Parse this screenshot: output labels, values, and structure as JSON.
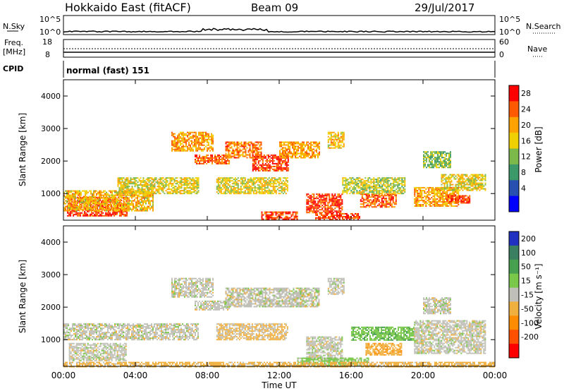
{
  "header": {
    "station": "Hokkaido East (fitACF)",
    "beam": "Beam 09",
    "date": "29/Jul/2017"
  },
  "strips": {
    "nsky": {
      "label": "N.Sky",
      "ticks": [
        "10^5",
        "10^0"
      ],
      "right_ticks": [
        "10^5",
        "10^0"
      ],
      "right_label": "N.Search"
    },
    "freq": {
      "label_top": "Freq.",
      "label_bottom": "[MHz]",
      "ticks": [
        "18",
        "8"
      ],
      "right_ticks": [
        "60",
        "0"
      ],
      "right_label": "Nave"
    },
    "cpid": {
      "label": "CPID",
      "text": "normal (fast) 151"
    }
  },
  "chart_data": [
    {
      "type": "heatmap",
      "name_hint": "power",
      "ylabel": "Slant Range [km]",
      "y_ticks": [
        "4000",
        "3000",
        "2000",
        "1000"
      ],
      "y_values": [
        4000,
        3000,
        2000,
        1000
      ],
      "ylim": [
        180,
        4500
      ],
      "xlim": [
        0,
        24
      ],
      "colorbar_label": "Power [dB]",
      "colorbar_ticks": [
        "28",
        "24",
        "20",
        "16",
        "12",
        "8",
        "4"
      ],
      "colorbar_values": [
        28,
        24,
        20,
        16,
        12,
        8,
        4
      ],
      "colorbar_colors": [
        "#ff0000",
        "#ff5a00",
        "#ffa200",
        "#f0d000",
        "#7cb84a",
        "#3c9a6a",
        "#2850b0",
        "#0000ff"
      ],
      "regions": [
        {
          "x": [
            0.2,
            3.5
          ],
          "y": [
            300,
            900
          ],
          "v": 28
        },
        {
          "x": [
            0,
            5.0
          ],
          "y": [
            450,
            1100
          ],
          "v": 20
        },
        {
          "x": [
            3.0,
            7.5
          ],
          "y": [
            1000,
            1500
          ],
          "v": 18
        },
        {
          "x": [
            6.0,
            8.3
          ],
          "y": [
            2300,
            2900
          ],
          "v": 22
        },
        {
          "x": [
            7.3,
            9.2
          ],
          "y": [
            1900,
            2200
          ],
          "v": 26
        },
        {
          "x": [
            9.0,
            11.0
          ],
          "y": [
            2100,
            2600
          ],
          "v": 24
        },
        {
          "x": [
            10.5,
            12.5
          ],
          "y": [
            1700,
            2200
          ],
          "v": 28
        },
        {
          "x": [
            12.0,
            14.2
          ],
          "y": [
            2100,
            2600
          ],
          "v": 22
        },
        {
          "x": [
            8.5,
            12.5
          ],
          "y": [
            1000,
            1500
          ],
          "v": 18
        },
        {
          "x": [
            11.0,
            13.0
          ],
          "y": [
            200,
            450
          ],
          "v": 28
        },
        {
          "x": [
            13.5,
            15.5
          ],
          "y": [
            400,
            1000
          ],
          "v": 28
        },
        {
          "x": [
            14.0,
            16.5
          ],
          "y": [
            200,
            400
          ],
          "v": 28
        },
        {
          "x": [
            16.5,
            18.5
          ],
          "y": [
            600,
            1000
          ],
          "v": 26
        },
        {
          "x": [
            14.7,
            15.6
          ],
          "y": [
            2400,
            2900
          ],
          "v": 20
        },
        {
          "x": [
            15.5,
            19.0
          ],
          "y": [
            1000,
            1500
          ],
          "v": 16
        },
        {
          "x": [
            19.5,
            22.0
          ],
          "y": [
            600,
            1200
          ],
          "v": 22
        },
        {
          "x": [
            21.3,
            22.6
          ],
          "y": [
            700,
            950
          ],
          "v": 28
        },
        {
          "x": [
            21.0,
            23.5
          ],
          "y": [
            1100,
            1600
          ],
          "v": 18
        },
        {
          "x": [
            20.0,
            21.5
          ],
          "y": [
            1800,
            2300
          ],
          "v": 14
        }
      ]
    },
    {
      "type": "heatmap",
      "name_hint": "velocity",
      "ylabel": "Slant Range [km]",
      "y_ticks": [
        "4000",
        "3000",
        "2000",
        "1000"
      ],
      "y_values": [
        4000,
        3000,
        2000,
        1000
      ],
      "ylim": [
        180,
        4500
      ],
      "xlim": [
        0,
        24
      ],
      "xlabel": "Time UT",
      "x_ticks": [
        "00:00",
        "04:00",
        "08:00",
        "12:00",
        "16:00",
        "20:00",
        "00:00"
      ],
      "x_values": [
        0,
        4,
        8,
        12,
        16,
        20,
        24
      ],
      "colorbar_label": "Velocity [m s⁻¹]",
      "colorbar_ticks": [
        "200",
        "100",
        "50",
        "15",
        "-15",
        "-50",
        "-100",
        "-200"
      ],
      "colorbar_values": [
        200,
        100,
        50,
        15,
        -15,
        -50,
        -100,
        -200
      ],
      "colorbar_colors": [
        "#2030c0",
        "#3a8060",
        "#46a050",
        "#7ac84a",
        "#c0c0b8",
        "#f0b040",
        "#ff8c00",
        "#ff5000",
        "#ff0000"
      ],
      "regions": [
        {
          "x": [
            0.3,
            3.5
          ],
          "y": [
            350,
            900
          ],
          "v": 0
        },
        {
          "x": [
            0,
            7.5
          ],
          "y": [
            1000,
            1500
          ],
          "v": 0
        },
        {
          "x": [
            6.0,
            8.3
          ],
          "y": [
            2300,
            2900
          ],
          "v": 0
        },
        {
          "x": [
            7.3,
            9.2
          ],
          "y": [
            1900,
            2200
          ],
          "v": 0
        },
        {
          "x": [
            9.0,
            14.2
          ],
          "y": [
            2000,
            2600
          ],
          "v": 0
        },
        {
          "x": [
            8.5,
            12.5
          ],
          "y": [
            1000,
            1500
          ],
          "v": -20
        },
        {
          "x": [
            13.5,
            15.5
          ],
          "y": [
            400,
            1100
          ],
          "v": 0
        },
        {
          "x": [
            13.0,
            17.0
          ],
          "y": [
            200,
            450
          ],
          "v": 30
        },
        {
          "x": [
            16.8,
            18.8
          ],
          "y": [
            550,
            900
          ],
          "v": -40
        },
        {
          "x": [
            14.7,
            15.6
          ],
          "y": [
            2400,
            2900
          ],
          "v": 0
        },
        {
          "x": [
            16.0,
            19.5
          ],
          "y": [
            1000,
            1400
          ],
          "v": 40
        },
        {
          "x": [
            19.5,
            23.5
          ],
          "y": [
            600,
            1600
          ],
          "v": 0
        },
        {
          "x": [
            20.0,
            21.5
          ],
          "y": [
            1800,
            2300
          ],
          "v": 0
        },
        {
          "x": [
            0,
            24
          ],
          "y": [
            180,
            320
          ],
          "v": -30
        }
      ]
    }
  ]
}
